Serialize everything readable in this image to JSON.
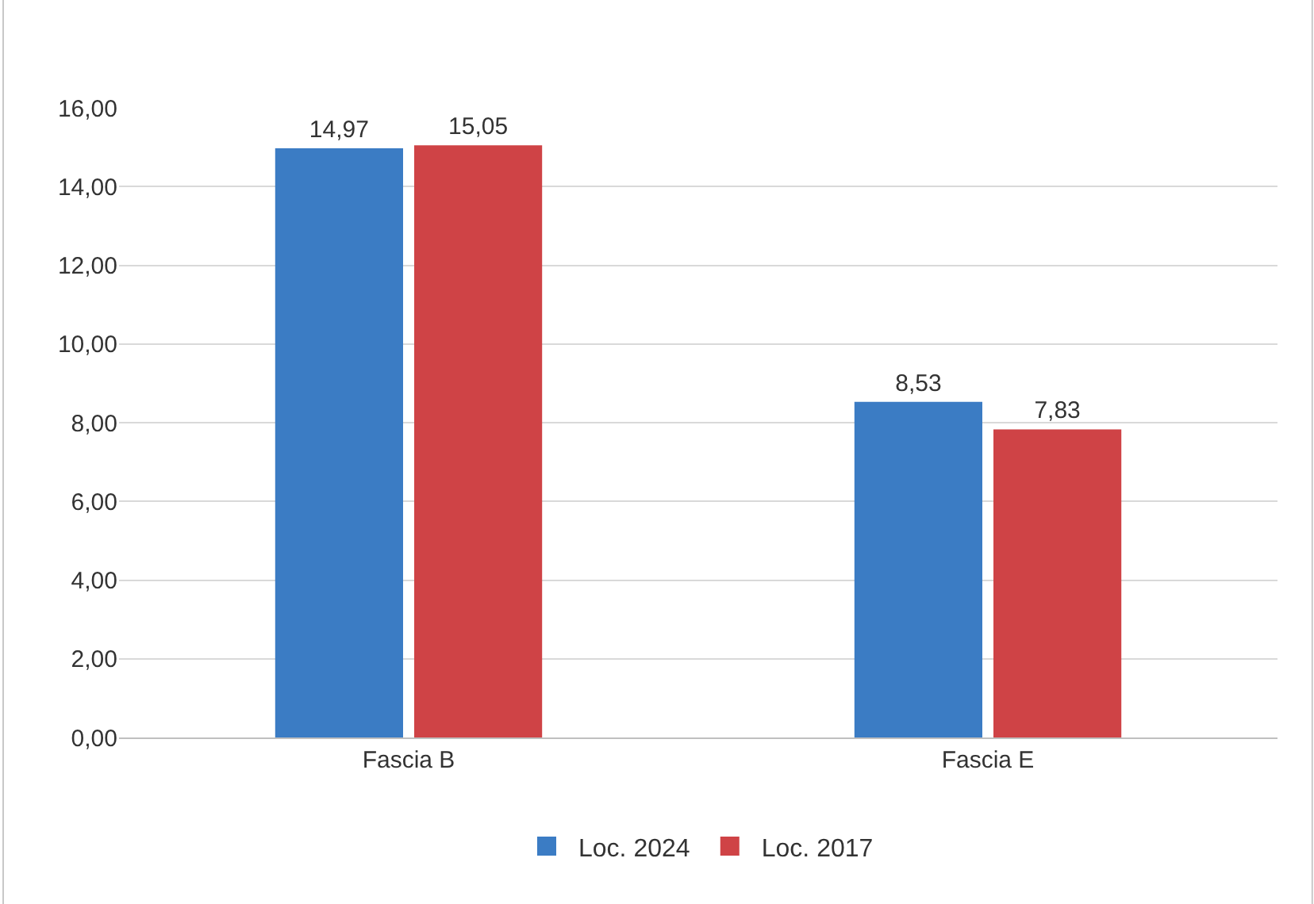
{
  "chart_data": {
    "type": "bar",
    "categories": [
      "Fascia B",
      "Fascia E"
    ],
    "series": [
      {
        "name": "Loc. 2024",
        "color": "#3b7cc4",
        "values": [
          14.97,
          8.53
        ],
        "value_labels": [
          "14,97",
          "8,53"
        ]
      },
      {
        "name": "Loc. 2017",
        "color": "#cf4346",
        "values": [
          15.05,
          7.83
        ],
        "value_labels": [
          "15,05",
          "7,83"
        ]
      }
    ],
    "ylim": [
      0,
      16
    ],
    "yticks": [
      {
        "value": 0,
        "label": "0,00"
      },
      {
        "value": 2,
        "label": "2,00"
      },
      {
        "value": 4,
        "label": "4,00"
      },
      {
        "value": 6,
        "label": "6,00"
      },
      {
        "value": 8,
        "label": "8,00"
      },
      {
        "value": 10,
        "label": "10,00"
      },
      {
        "value": 12,
        "label": "12,00"
      },
      {
        "value": 14,
        "label": "14,00"
      },
      {
        "value": 16,
        "label": "16,00"
      }
    ],
    "grid": "y",
    "legend": "bottom"
  }
}
